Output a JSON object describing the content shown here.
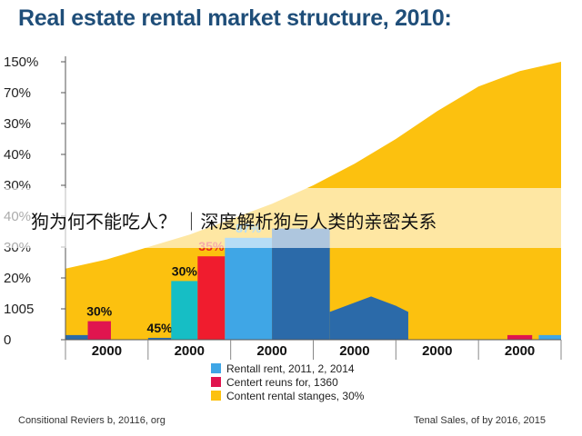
{
  "chart_data": {
    "type": "area",
    "title": "Real estate rental market structure, 2010:",
    "y_ticks": [
      "0",
      "1005",
      "20%",
      "30%",
      "40%",
      "30%",
      "40%",
      "30%",
      "70%",
      "150%"
    ],
    "ylim": [
      0,
      9
    ],
    "x_ticks": [
      "2000",
      "2000",
      "2000",
      "2000",
      "2000",
      "2000"
    ],
    "xlim": [
      0,
      6
    ],
    "area": {
      "color": "#fcc10f",
      "points": [
        [
          0,
          2.3
        ],
        [
          0.5,
          2.6
        ],
        [
          1,
          3.0
        ],
        [
          1.5,
          3.4
        ],
        [
          2,
          3.9
        ],
        [
          2.5,
          4.4
        ],
        [
          3,
          5.0
        ],
        [
          3.5,
          5.7
        ],
        [
          4,
          6.5
        ],
        [
          4.5,
          7.4
        ],
        [
          5,
          8.2
        ],
        [
          5.5,
          8.7
        ],
        [
          6,
          9.0
        ]
      ]
    },
    "bars": [
      {
        "x0": 0,
        "x1": 0.27,
        "value": 0.15,
        "color": "#2a6aa8",
        "label": ""
      },
      {
        "x0": 0.27,
        "x1": 0.55,
        "value": 0.6,
        "color": "#e0154f",
        "label": "30%",
        "label_color": "#111111"
      },
      {
        "x0": 1.0,
        "x1": 1.28,
        "value": 0.06,
        "color": "#2a6aa8",
        "label": "45%",
        "label_color": "#111111"
      },
      {
        "x0": 1.28,
        "x1": 1.6,
        "value": 1.9,
        "color": "#16bec5",
        "label": "30%",
        "label_color": "#111111"
      },
      {
        "x0": 1.6,
        "x1": 1.93,
        "value": 2.7,
        "color": "#f01c2e",
        "label": "35%",
        "label_color": "#e52421"
      },
      {
        "x0": 1.93,
        "x1": 2.5,
        "value": 3.3,
        "color": "#3fa6e6",
        "label": "87%",
        "label_color": "#3fa6e6"
      },
      {
        "x0": 2.5,
        "x1": 3.2,
        "value": 3.6,
        "color": "#2b6aa9",
        "label": "",
        "label_color": ""
      },
      {
        "x0": 5.35,
        "x1": 5.65,
        "value": 0.15,
        "color": "#e0154f",
        "label": ""
      },
      {
        "x0": 5.73,
        "x1": 6.0,
        "value": 0.15,
        "color": "#3fa6e6",
        "label": ""
      }
    ],
    "wave": {
      "color": "#2b6aa9",
      "points": [
        [
          3.2,
          0.9
        ],
        [
          3.7,
          1.4
        ],
        [
          4.0,
          1.1
        ],
        [
          4.15,
          0.9
        ],
        [
          4.15,
          0
        ]
      ]
    },
    "legend": [
      {
        "label": "Rentall rent, 2011, 2, 2014",
        "color": "#3fa6e6"
      },
      {
        "label": "Centert reuns for, 1360",
        "color": "#e0154f"
      },
      {
        "label": "Content rental stanges, 30%",
        "color": "#fcc10f"
      }
    ],
    "grid": false
  },
  "banner_text": "狗为何不能吃人？ ｜深度解析狗与人类的亲密关系",
  "footer": {
    "left": "Consitional Reviers b, 20116, org",
    "right": "Tenal Sales, of by 2016, 2015"
  }
}
